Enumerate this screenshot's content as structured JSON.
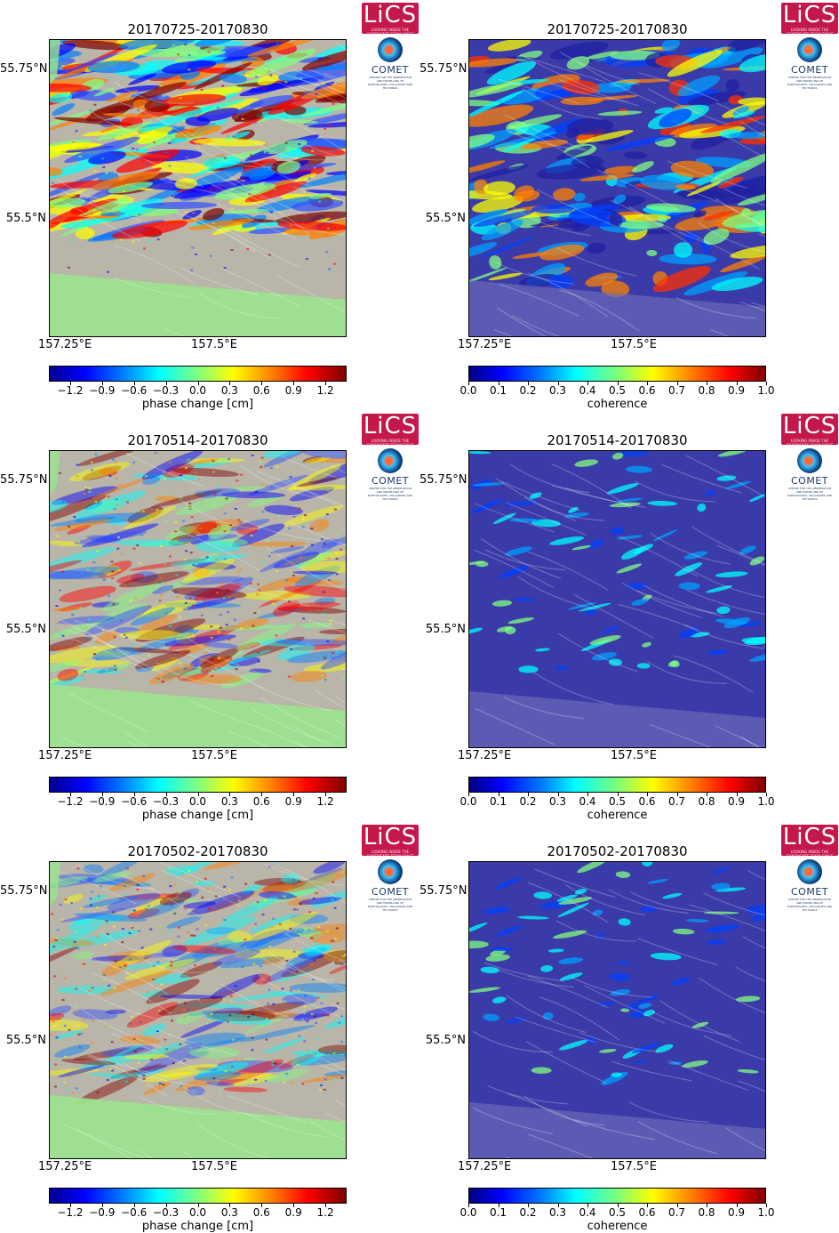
{
  "panels": [
    {
      "title": "20170725-20170830",
      "kind": "phase",
      "lat_labels": [
        "55.75°N",
        "55.5°N"
      ],
      "lon_labels": [
        "157.25°E",
        "157.5°E"
      ],
      "ticks": [
        "−1.2",
        "−0.9",
        "−0.6",
        "−0.3",
        "0.0",
        "0.3",
        "0.6",
        "0.9",
        "1.2"
      ],
      "colorbar_label": "phase change [cm]",
      "coherence_level": 0.7
    },
    {
      "title": "20170725-20170830",
      "kind": "coherence",
      "lat_labels": [
        "55.75°N",
        "55.5°N"
      ],
      "lon_labels": [
        "157.25°E",
        "157.5°E"
      ],
      "ticks": [
        "0.0",
        "0.1",
        "0.2",
        "0.3",
        "0.4",
        "0.5",
        "0.6",
        "0.7",
        "0.8",
        "0.9",
        "1.0"
      ],
      "colorbar_label": "coherence",
      "coherence_level": 0.7
    },
    {
      "title": "20170514-20170830",
      "kind": "phase",
      "lat_labels": [
        "55.75°N",
        "55.5°N"
      ],
      "lon_labels": [
        "157.25°E",
        "157.5°E"
      ],
      "ticks": [
        "−1.2",
        "−0.9",
        "−0.6",
        "−0.3",
        "0.0",
        "0.3",
        "0.6",
        "0.9",
        "1.2"
      ],
      "colorbar_label": "phase change [cm]",
      "coherence_level": 0.25
    },
    {
      "title": "20170514-20170830",
      "kind": "coherence",
      "lat_labels": [
        "55.75°N",
        "55.5°N"
      ],
      "lon_labels": [
        "157.25°E",
        "157.5°E"
      ],
      "ticks": [
        "0.0",
        "0.1",
        "0.2",
        "0.3",
        "0.4",
        "0.5",
        "0.6",
        "0.7",
        "0.8",
        "0.9",
        "1.0"
      ],
      "colorbar_label": "coherence",
      "coherence_level": 0.25
    },
    {
      "title": "20170502-20170830",
      "kind": "phase",
      "lat_labels": [
        "55.75°N",
        "55.5°N"
      ],
      "lon_labels": [
        "157.25°E",
        "157.5°E"
      ],
      "ticks": [
        "−1.2",
        "−0.9",
        "−0.6",
        "−0.3",
        "0.0",
        "0.3",
        "0.6",
        "0.9",
        "1.2"
      ],
      "colorbar_label": "phase change [cm]",
      "coherence_level": 0.2
    },
    {
      "title": "20170502-20170830",
      "kind": "coherence",
      "lat_labels": [
        "55.75°N",
        "55.5°N"
      ],
      "lon_labels": [
        "157.25°E",
        "157.5°E"
      ],
      "ticks": [
        "0.0",
        "0.1",
        "0.2",
        "0.3",
        "0.4",
        "0.5",
        "0.6",
        "0.7",
        "0.8",
        "0.9",
        "1.0"
      ],
      "colorbar_label": "coherence",
      "coherence_level": 0.2
    }
  ],
  "logos": {
    "lics_text": "LiCS",
    "lics_subtext": "LOOKING INSIDE THE CONTINENTS FROM SPACE",
    "comet_text": "COMET",
    "comet_subtext": "CENTRE FOR THE OBSERVATION AND MODELLING OF EARTHQUAKES, VOLCANOES AND TECTONICS"
  },
  "colors": {
    "logo_red": "#c4174a",
    "comet_blue": "#1b3a6b",
    "mask_green": "#9be38f",
    "coh_low": "#3a3aa8"
  }
}
